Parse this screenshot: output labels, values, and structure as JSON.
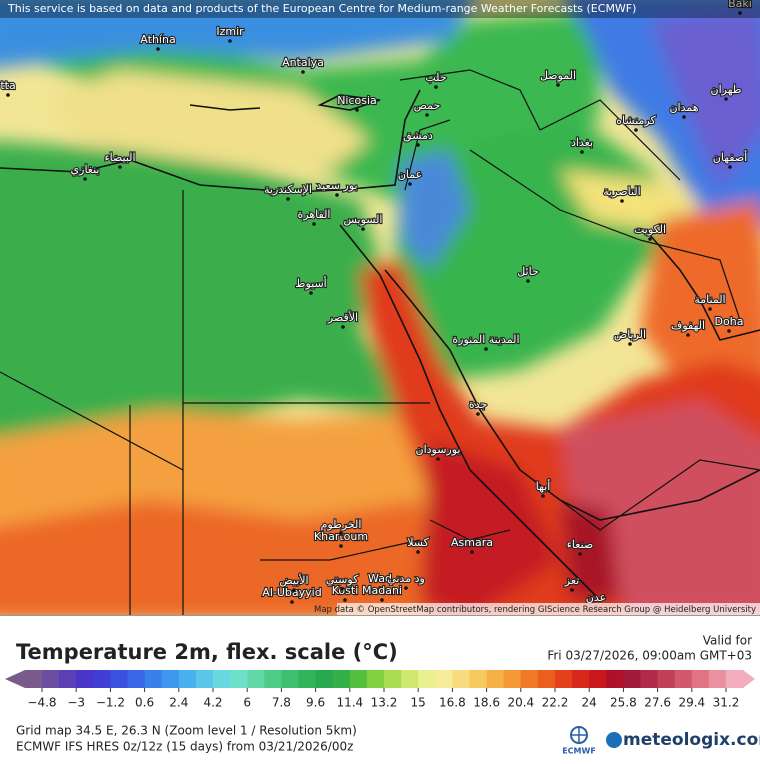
{
  "header": {
    "notice": "This service is based on data and products of the European Centre for Medium-range Weather Forecasts (ECMWF)",
    "attribution": "Map data © OpenStreetMap contributors, rendering GIScience Research Group @ Heidelberg University"
  },
  "map": {
    "cities": [
      "Athína",
      "Izmir",
      "Antalya",
      "Nicosia",
      "Baki",
      "tta",
      "Doha",
      "Khartoum",
      "Asmara",
      "Al-Ubayyid",
      "Kosti",
      "Wad",
      "Madani",
      "القاهرة",
      "الإسكندرية",
      "بور سعيد",
      "السويس",
      "أسيوط",
      "الأقصر",
      "جدة",
      "بورسودان",
      "المدينة المنورة",
      "الرياض",
      "حائل",
      "الكويت",
      "بغداد",
      "الموصل",
      "حلب",
      "حمص",
      "دمشق",
      "عمان",
      "طهران",
      "صنعاء",
      "عدن",
      "تعز",
      "أبها",
      "كسلا",
      "الخرطوم",
      "الأبيض",
      "كوستي",
      "ود مدني",
      "بنغازي",
      "البيضاء",
      "الناصرية",
      "المنامة",
      "الهفوف",
      "أصفهان",
      "همدان",
      "كرمنشاه"
    ]
  },
  "legend": {
    "title": "Temperature 2m, flex. scale (°C)",
    "valid_label": "Valid for",
    "valid_time": "Fri 03/27/2026, 09:00am GMT+03",
    "ticks": [
      "−4.8",
      "−3",
      "−1.2",
      "0.6",
      "2.4",
      "4.2",
      "6",
      "7.8",
      "9.6",
      "11.4",
      "13.2",
      "15",
      "16.8",
      "18.6",
      "20.4",
      "22.2",
      "24",
      "25.8",
      "27.6",
      "29.4",
      "31.2"
    ],
    "colors": [
      "#7a5a8a",
      "#6a4ea0",
      "#5a3fb5",
      "#4a35c8",
      "#3f3fd8",
      "#3a50e0",
      "#3866e6",
      "#3a80ea",
      "#3f98ee",
      "#4ab0ee",
      "#5ac6ea",
      "#6ad8e0",
      "#6ee0c8",
      "#62d8a8",
      "#50cc88",
      "#3fc070",
      "#30b45c",
      "#28a850",
      "#35b048",
      "#55c040",
      "#80d040",
      "#aadc50",
      "#d0e870",
      "#eaf090",
      "#f6ec9a",
      "#f8dc80",
      "#f8c860",
      "#f6b048",
      "#f49838",
      "#f07a28",
      "#ec5e20",
      "#e4401c",
      "#d8281c",
      "#c8181e",
      "#b01028",
      "#a01a3a",
      "#b02a4a",
      "#c04058",
      "#d05a6c",
      "#e07484",
      "#ea90a0",
      "#f2aebc"
    ]
  },
  "footer": {
    "grid": "Grid map 34.5 E, 26.3 N (Zoom level 1 / Resolution 5km)",
    "model": "ECMWF IFS HRES 0z/12z (15 days) from  03/21/2026/00z",
    "ecmwf": "ECMWF",
    "brand": "meteologix.com"
  }
}
